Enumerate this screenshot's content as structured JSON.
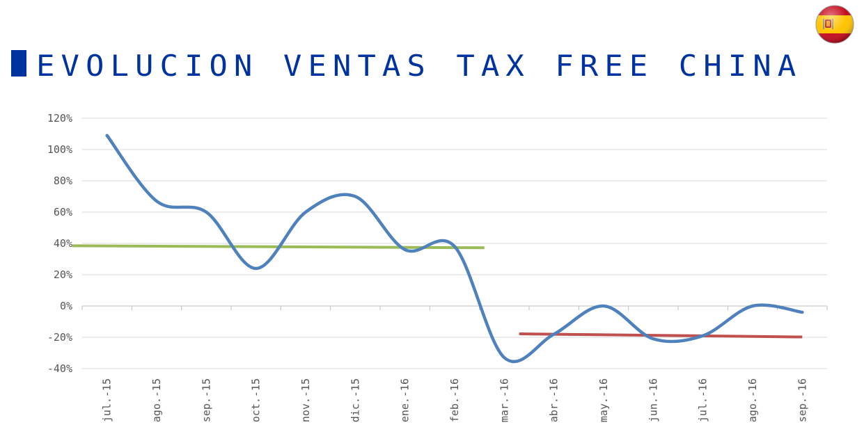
{
  "header": {
    "title": "EVOLUCION VENTAS TAX FREE CHINA",
    "accent_color": "#0033a0",
    "flag_icon": "spain-flag-icon"
  },
  "colors": {
    "series": "#4f81bd",
    "trend_first": "#9bbb59",
    "trend_second": "#c0504d",
    "grid": "#d9d9d9",
    "axis_text": "#555555"
  },
  "chart_data": {
    "type": "line",
    "title": "",
    "xlabel": "",
    "ylabel": "",
    "categories": [
      "jul.-15",
      "ago.-15",
      "sep.-15",
      "oct.-15",
      "nov.-15",
      "dic.-15",
      "ene.-16",
      "feb.-16",
      "mar.-16",
      "abr.-16",
      "may.-16",
      "jun.-16",
      "jul.-16",
      "ago.-16",
      "sep.-16"
    ],
    "values": [
      109,
      67,
      60,
      24,
      60,
      70,
      36,
      38,
      -33,
      -18,
      0,
      -21,
      -19,
      0,
      -4
    ],
    "y_ticks": [
      "-40%",
      "-20%",
      "0%",
      "20%",
      "40%",
      "60%",
      "80%",
      "100%",
      "120%"
    ],
    "ylim": [
      -40,
      120
    ],
    "grid": true,
    "legend": "none",
    "trend_lines": [
      {
        "x_start": -0.7,
        "x_end": 7.6,
        "y_start": 38.5,
        "y_end": 37.2
      },
      {
        "x_start": 8.3,
        "x_end": 14.0,
        "y_start": -17.8,
        "y_end": -19.8
      }
    ]
  }
}
